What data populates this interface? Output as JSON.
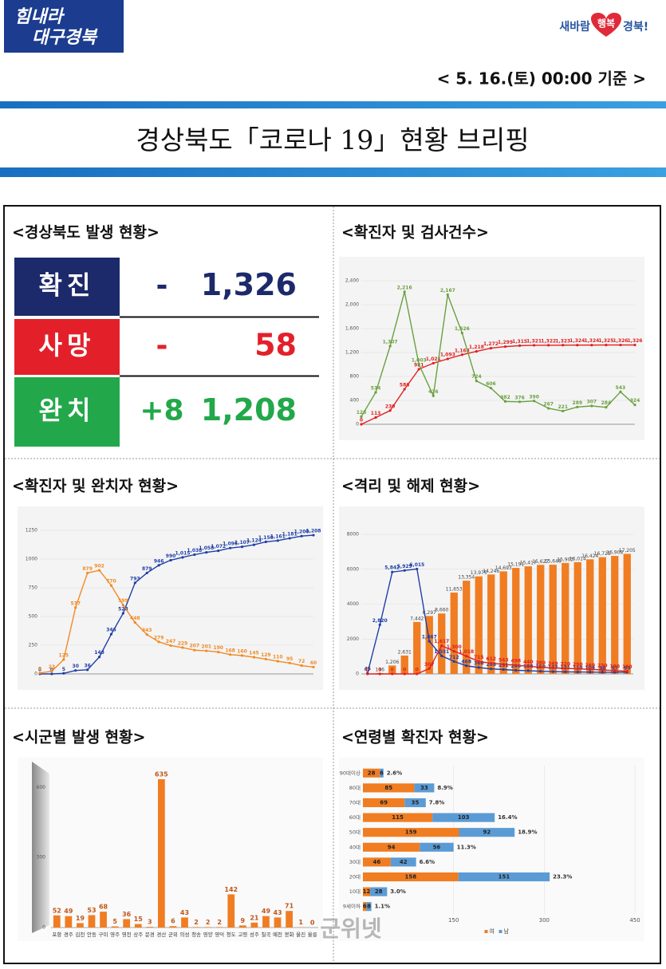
{
  "header": {
    "logo_left": [
      "힘내라",
      "대구경북"
    ],
    "logo_right": [
      "새바람",
      "행복",
      "경북!"
    ],
    "date": "< 5. 16.(토) 00:00 기준 >",
    "title": "경상북도「코로나 19」현황 브리핑"
  },
  "stats": {
    "title": "<경상북도 발생 현황>",
    "rows": [
      {
        "label": "확진",
        "change": "-",
        "total": "1,326",
        "color": "#1c2a6b"
      },
      {
        "label": "사망",
        "change": "-",
        "total": "58",
        "color": "#e3202a"
      },
      {
        "label": "완치",
        "change": "+8",
        "total": "1,208",
        "color": "#22a84a"
      }
    ]
  },
  "watermark": "군위넷",
  "chart_data": [
    {
      "type": "line",
      "title": "<확진자 및 검사건수>",
      "ylim": [
        0,
        2400
      ],
      "yticks": [
        0,
        400,
        800,
        {
          "value": 1200,
          "label": "1,200"
        },
        {
          "value": 1600,
          "label": "1,600"
        },
        {
          "value": 2000,
          "label": "2,000"
        },
        {
          "value": 2400,
          "label": "2,400"
        }
      ],
      "grid": true,
      "series": [
        {
          "color": "#e02020",
          "values": [
            0,
            113,
            230,
            586,
            921,
            1021,
            1093,
            1163,
            1218,
            1272,
            1299,
            1315,
            1321,
            1322,
            1323,
            1324,
            1324,
            1325,
            1326,
            1326
          ],
          "value_labels": [
            "0",
            "113",
            "230",
            "586",
            "921",
            "1,021",
            "1,093",
            "1,163",
            "1,218",
            "1,272",
            "1,299",
            "1,315",
            "1,321",
            "1,322",
            "1,323",
            "1,324",
            "1,324",
            "1,325",
            "1,326",
            "1,326"
          ]
        },
        {
          "color": "#6aa040",
          "values": [
            128,
            534,
            1307,
            2216,
            1003,
            476,
            2167,
            1526,
            724,
            606,
            382,
            376,
            390,
            267,
            221,
            289,
            307,
            284,
            543,
            324
          ],
          "value_labels": [
            "128",
            "534",
            "1,307",
            "2,216",
            "1,003",
            "476",
            "2,167",
            "1,526",
            "724",
            "606",
            "382",
            "376",
            "390",
            "267",
            "221",
            "289",
            "307",
            "284",
            "543",
            "324"
          ]
        }
      ]
    },
    {
      "type": "line",
      "title": "<확진자 및 완치자 현황>",
      "ylim": [
        0,
        1250
      ],
      "yticks": [
        0,
        250,
        500,
        750,
        1000,
        1250
      ],
      "grid": true,
      "series": [
        {
          "color": "#1f3fa8",
          "values": [
            0,
            0,
            5,
            30,
            36,
            148,
            346,
            528,
            793,
            879,
            946,
            990,
            1015,
            1038,
            1058,
            1072,
            1096,
            1107,
            1124,
            1150,
            1161,
            1181,
            1200,
            1208
          ],
          "value_labels": [
            "0",
            "0",
            "5",
            "30",
            "36",
            "148",
            "346",
            "528",
            "793",
            "879",
            "946",
            "990",
            "1,015",
            "1,038",
            "1,058",
            "1,072",
            "1,096",
            "1,107",
            "1,124",
            "1,150",
            "1,161",
            "1,181",
            "1,200",
            "1,208"
          ]
        },
        {
          "color": "#f08a24",
          "values": [
            8,
            23,
            125,
            577,
            879,
            902,
            770,
            599,
            448,
            343,
            279,
            247,
            229,
            207,
            201,
            190,
            168,
            160,
            145,
            129,
            110,
            95,
            72,
            60
          ]
        }
      ]
    },
    {
      "type": "combo",
      "title": "<격리 및 해제 현황>",
      "ylim": [
        0,
        8000
      ],
      "yticks": [
        0,
        2000,
        4000,
        6000,
        8000
      ],
      "y2lim": [
        0,
        20000
      ],
      "grid": true,
      "series": [
        {
          "mark": "bar",
          "axis": "y2",
          "color": "#f07d22",
          "values": [
            47,
            116,
            1206,
            2631,
            7442,
            8297,
            8660,
            11653,
            13354,
            13975,
            14246,
            14693,
            15191,
            15417,
            15627,
            15648,
            15903,
            16014,
            16424,
            16729,
            16908,
            17205
          ],
          "value_labels": [
            "47",
            "116",
            "1,206",
            "2,631",
            "7,442",
            "8,297",
            "8,660",
            "11,653",
            "13,354",
            "13,975",
            "14,246",
            "14,693",
            "15,191",
            "15,417",
            "15,627",
            "15,648",
            "15,903",
            "16,014",
            "16,424",
            "16,729",
            "16,908",
            "17,205"
          ]
        },
        {
          "mark": "line",
          "color": "#1f3fa8",
          "values": [
            45,
            2820,
            5842,
            5929,
            6015,
            1867,
            1031,
            712,
            468,
            366,
            288,
            251,
            206,
            188,
            150,
            133,
            121,
            110,
            104,
            98,
            97,
            95
          ],
          "value_labels": [
            "45",
            "2,820",
            "5,842",
            "5,929",
            "6,015",
            "1,867",
            "1,031",
            "712",
            "468",
            "366",
            "288",
            "251",
            "206",
            "188",
            "150",
            "133",
            "121",
            "110",
            "104",
            "98",
            "97",
            "95"
          ]
        },
        {
          "mark": "line",
          "color": "#e02020",
          "values": [
            0,
            0,
            0,
            0,
            0,
            307,
            1617,
            1300,
            1018,
            715,
            612,
            543,
            498,
            440,
            380,
            349,
            320,
            290,
            260,
            230,
            190,
            150
          ],
          "value_labels": [
            "0",
            "0",
            "0",
            "0",
            "0",
            "307",
            "1,617",
            "1,300",
            "1,018",
            "715",
            "612",
            "543",
            "498",
            "440",
            "380",
            "349",
            "320",
            "290",
            "260",
            "230",
            "190",
            "150"
          ]
        }
      ]
    },
    {
      "type": "bar",
      "title": "<시군별 발생 현황>",
      "categories": [
        "포항",
        "경주",
        "김천",
        "안동",
        "구미",
        "영주",
        "영천",
        "상주",
        "문경",
        "경산",
        "군위",
        "의성",
        "청송",
        "영양",
        "영덕",
        "청도",
        "고령",
        "성주",
        "칠곡",
        "예천",
        "봉화",
        "울진",
        "울릉"
      ],
      "values": [
        52,
        49,
        19,
        53,
        68,
        5,
        36,
        15,
        3,
        635,
        6,
        43,
        2,
        2,
        2,
        142,
        9,
        21,
        49,
        43,
        71,
        1,
        0
      ],
      "color": "#f07d22",
      "ylim": [
        0,
        700
      ],
      "yticks": [
        0,
        300,
        600
      ]
    },
    {
      "type": "barh",
      "title": "<연령별 확진자 현황>",
      "categories": [
        "90대이상",
        "80대",
        "70대",
        "60대",
        "50대",
        "40대",
        "30대",
        "20대",
        "10대",
        "9세이하"
      ],
      "series": [
        {
          "name": "여",
          "color": "#f07d22",
          "values": [
            28,
            85,
            69,
            115,
            159,
            94,
            46,
            158,
            12,
            6
          ]
        },
        {
          "name": "남",
          "color": "#5b9bd5",
          "values": [
            6,
            33,
            35,
            103,
            92,
            56,
            42,
            151,
            28,
            8
          ]
        }
      ],
      "share_labels": [
        "2.6%",
        "8.9%",
        "7.8%",
        "16.4%",
        "18.9%",
        "11.3%",
        "6.6%",
        "23.3%",
        "3.0%",
        "1.1%"
      ],
      "xlim": [
        0,
        450
      ],
      "xticks": [
        150,
        300,
        450
      ]
    }
  ]
}
